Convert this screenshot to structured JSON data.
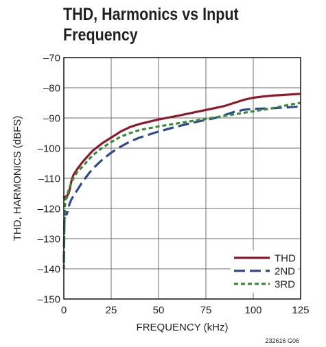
{
  "title_lines": [
    "THD, Harmonics vs Input",
    "Frequency"
  ],
  "note": "232616 G06",
  "chart_data": {
    "type": "line",
    "title": "THD, Harmonics vs Input Frequency",
    "xlabel": "FREQUENCY (kHz)",
    "ylabel": "THD, HARMONICS (dBFS)",
    "xlim": [
      0,
      125
    ],
    "ylim": [
      -150,
      -70
    ],
    "xticks": [
      0,
      25,
      50,
      75,
      100,
      125
    ],
    "yticks": [
      -150,
      -140,
      -130,
      -120,
      -110,
      -100,
      -90,
      -80,
      -70
    ],
    "xtick_labels": [
      "0",
      "25",
      "50",
      "75",
      "100",
      "125"
    ],
    "ytick_labels": [
      "–150",
      "–140",
      "–130",
      "–120",
      "–110",
      "–100",
      "–90",
      "–80",
      "–70"
    ],
    "grid": true,
    "legend_position": "bottom-right",
    "series": [
      {
        "name": "THD",
        "color": "#8b1a2b",
        "dash": "solid",
        "x": [
          0,
          0.5,
          1,
          1.5,
          2,
          2.5,
          3,
          4,
          5,
          7,
          10,
          15,
          20,
          25,
          30,
          35,
          40,
          50,
          60,
          70,
          80,
          85,
          90,
          95,
          100,
          105,
          110,
          115,
          120,
          125
        ],
        "y": [
          -116,
          -117,
          -116,
          -116.5,
          -115.5,
          -115,
          -114,
          -111,
          -109,
          -107,
          -104.5,
          -101,
          -98.5,
          -96.5,
          -94.5,
          -93,
          -92,
          -90.5,
          -89.3,
          -88,
          -86.7,
          -86,
          -85,
          -84,
          -83.3,
          -82.9,
          -82.6,
          -82.4,
          -82.2,
          -82
        ]
      },
      {
        "name": "2ND",
        "color": "#2e4a8c",
        "dash": "long-dash",
        "x": [
          0,
          0.3,
          0.6,
          1,
          1.5,
          2,
          3,
          4,
          5,
          7,
          10,
          15,
          20,
          25,
          30,
          35,
          40,
          50,
          60,
          70,
          80,
          85,
          90,
          95,
          100,
          110,
          120,
          125
        ],
        "y": [
          -138,
          -124,
          -121,
          -121.5,
          -122,
          -121,
          -118.5,
          -117,
          -116,
          -114,
          -111,
          -107,
          -104,
          -101.5,
          -99.5,
          -97.8,
          -96.5,
          -94.5,
          -92.8,
          -91.3,
          -90,
          -89,
          -88,
          -87.3,
          -87,
          -86.8,
          -86.4,
          -86.2
        ]
      },
      {
        "name": "3RD",
        "color": "#3a8a3a",
        "dash": "short-dash",
        "x": [
          0,
          0.3,
          0.6,
          1,
          1.5,
          2,
          3,
          4,
          5,
          7,
          10,
          15,
          20,
          25,
          30,
          35,
          40,
          50,
          60,
          70,
          80,
          90,
          100,
          110,
          120,
          125
        ],
        "y": [
          -140,
          -126,
          -119,
          -117,
          -116,
          -115,
          -113,
          -111.5,
          -110,
          -108,
          -106,
          -102.5,
          -100,
          -98,
          -96.2,
          -95,
          -94,
          -92.8,
          -91.8,
          -90.8,
          -89.8,
          -88.8,
          -87.8,
          -86.8,
          -85.5,
          -85
        ]
      }
    ]
  }
}
